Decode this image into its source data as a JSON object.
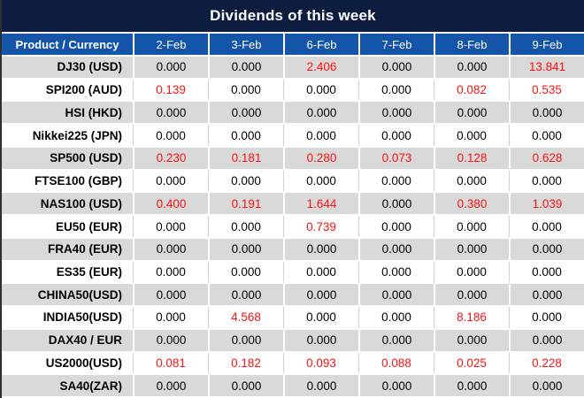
{
  "title": "Dividends of this week",
  "chart_data": {
    "type": "table",
    "title": "Dividends of this week",
    "columns": [
      "Product / Currency",
      "2-Feb",
      "3-Feb",
      "6-Feb",
      "7-Feb",
      "8-Feb",
      "9-Feb"
    ],
    "rows": [
      {
        "product": "DJ30 (USD)",
        "values": [
          "0.000",
          "0.000",
          "2.406",
          "0.000",
          "0.000",
          "13.841"
        ]
      },
      {
        "product": "SPI200 (AUD)",
        "values": [
          "0.139",
          "0.000",
          "0.000",
          "0.000",
          "0.082",
          "0.535"
        ]
      },
      {
        "product": "HSI (HKD)",
        "values": [
          "0.000",
          "0.000",
          "0.000",
          "0.000",
          "0.000",
          "0.000"
        ]
      },
      {
        "product": "Nikkei225 (JPN)",
        "values": [
          "0.000",
          "0.000",
          "0.000",
          "0.000",
          "0.000",
          "0.000"
        ]
      },
      {
        "product": "SP500 (USD)",
        "values": [
          "0.230",
          "0.181",
          "0.280",
          "0.073",
          "0.128",
          "0.628"
        ]
      },
      {
        "product": "FTSE100 (GBP)",
        "values": [
          "0.000",
          "0.000",
          "0.000",
          "0.000",
          "0.000",
          "0.000"
        ]
      },
      {
        "product": "NAS100 (USD)",
        "values": [
          "0.400",
          "0.191",
          "1.644",
          "0.000",
          "0.380",
          "1.039"
        ]
      },
      {
        "product": "EU50 (EUR)",
        "values": [
          "0.000",
          "0.000",
          "0.739",
          "0.000",
          "0.000",
          "0.000"
        ]
      },
      {
        "product": "FRA40 (EUR)",
        "values": [
          "0.000",
          "0.000",
          "0.000",
          "0.000",
          "0.000",
          "0.000"
        ]
      },
      {
        "product": "ES35 (EUR)",
        "values": [
          "0.000",
          "0.000",
          "0.000",
          "0.000",
          "0.000",
          "0.000"
        ]
      },
      {
        "product": "CHINA50(USD)",
        "values": [
          "0.000",
          "0.000",
          "0.000",
          "0.000",
          "0.000",
          "0.000"
        ]
      },
      {
        "product": "INDIA50(USD)",
        "values": [
          "0.000",
          "4.568",
          "0.000",
          "0.000",
          "8.186",
          "0.000"
        ]
      },
      {
        "product": "DAX40 / EUR",
        "values": [
          "0.000",
          "0.000",
          "0.000",
          "0.000",
          "0.000",
          "0.000"
        ]
      },
      {
        "product": "US2000(USD)",
        "values": [
          "0.081",
          "0.182",
          "0.093",
          "0.088",
          "0.025",
          "0.228"
        ]
      },
      {
        "product": "SA40(ZAR)",
        "values": [
          "0.000",
          "0.000",
          "0.000",
          "0.000",
          "0.000",
          "0.000"
        ]
      }
    ],
    "value_style_rule": "non-zero values rendered in red, zero values in black",
    "row_style_rule": "rows alternate gray/white starting with gray"
  },
  "colors": {
    "title_bg": "#0d1d3f",
    "header_bg": "#1455aa",
    "header_text": "#ffffff",
    "row_alt_bg": "#d9d9d9",
    "row_bg": "#ffffff",
    "text": "#000000",
    "nonzero_value": "#fe1111",
    "grid_gray": "#cfcfcf",
    "outer_border": "#2e2e2e"
  }
}
